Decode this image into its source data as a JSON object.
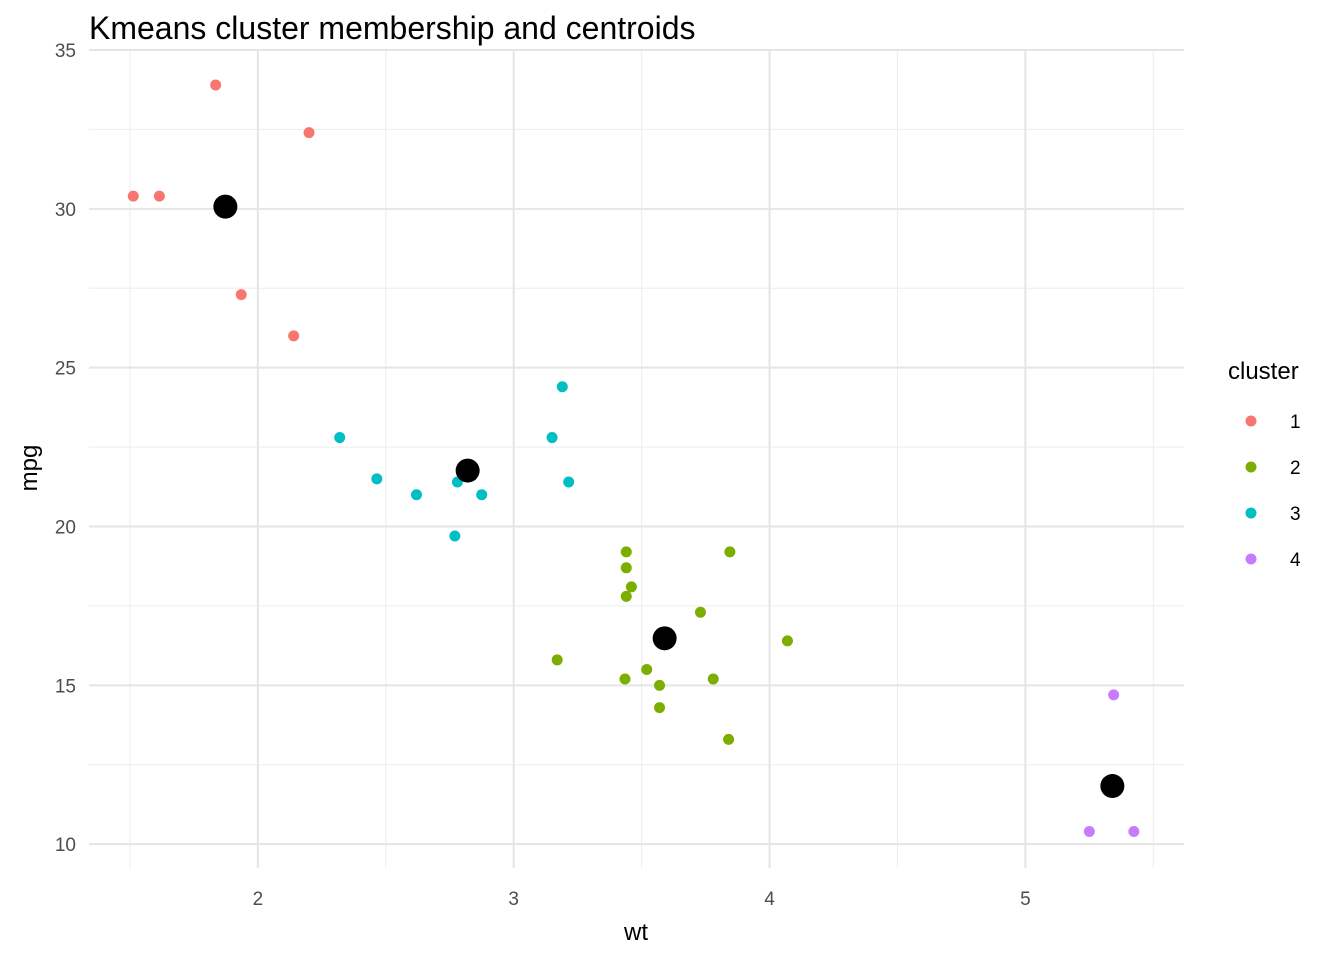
{
  "chart_data": {
    "type": "scatter",
    "title": "Kmeans cluster membership and centroids",
    "xlabel": "wt",
    "ylabel": "mpg",
    "xlim": [
      1.34,
      5.62
    ],
    "ylim": [
      9.25,
      35.0
    ],
    "x_ticks": [
      2,
      3,
      4,
      5
    ],
    "y_ticks": [
      10,
      15,
      20,
      25,
      30,
      35
    ],
    "x_tick_labels": [
      "2",
      "3",
      "4",
      "5"
    ],
    "y_tick_labels": [
      "10",
      "15",
      "20",
      "25",
      "30",
      "35"
    ],
    "x_minor": [
      1.5,
      2.5,
      3.5,
      4.5,
      5.5
    ],
    "y_minor": [
      12.5,
      17.5,
      22.5,
      27.5,
      32.5
    ],
    "grid": true,
    "legend": {
      "title": "cluster",
      "position": "right",
      "entries": [
        {
          "label": "1",
          "color": "#F8766D"
        },
        {
          "label": "2",
          "color": "#7CAE00"
        },
        {
          "label": "3",
          "color": "#00BFC4"
        },
        {
          "label": "4",
          "color": "#C77CFF"
        }
      ]
    },
    "series": [
      {
        "name": "1",
        "color": "#F8766D",
        "points": [
          [
            1.835,
            33.9
          ],
          [
            2.2,
            32.4
          ],
          [
            1.513,
            30.4
          ],
          [
            1.615,
            30.4
          ],
          [
            1.935,
            27.3
          ],
          [
            2.14,
            26.0
          ]
        ]
      },
      {
        "name": "2",
        "color": "#7CAE00",
        "points": [
          [
            3.44,
            19.2
          ],
          [
            3.44,
            18.7
          ],
          [
            3.46,
            18.1
          ],
          [
            3.44,
            17.8
          ],
          [
            3.73,
            17.3
          ],
          [
            3.845,
            19.2
          ],
          [
            4.07,
            16.4
          ],
          [
            3.17,
            15.8
          ],
          [
            3.52,
            15.5
          ],
          [
            3.435,
            15.2
          ],
          [
            3.78,
            15.2
          ],
          [
            3.57,
            15.0
          ],
          [
            3.57,
            14.3
          ],
          [
            3.84,
            13.3
          ]
        ]
      },
      {
        "name": "3",
        "color": "#00BFC4",
        "points": [
          [
            3.19,
            24.4
          ],
          [
            2.32,
            22.8
          ],
          [
            3.15,
            22.8
          ],
          [
            2.465,
            21.5
          ],
          [
            2.78,
            21.4
          ],
          [
            3.215,
            21.4
          ],
          [
            2.62,
            21.0
          ],
          [
            2.875,
            21.0
          ],
          [
            2.77,
            19.7
          ]
        ]
      },
      {
        "name": "4",
        "color": "#C77CFF",
        "points": [
          [
            5.345,
            14.7
          ],
          [
            5.25,
            10.4
          ],
          [
            5.424,
            10.4
          ]
        ]
      }
    ],
    "centroids": [
      {
        "cluster": "1",
        "x": 1.873,
        "y": 30.07
      },
      {
        "cluster": "3",
        "x": 2.82,
        "y": 21.76
      },
      {
        "cluster": "2",
        "x": 3.59,
        "y": 16.48
      },
      {
        "cluster": "4",
        "x": 5.34,
        "y": 11.83
      }
    ],
    "centroid_color": "#000000"
  }
}
